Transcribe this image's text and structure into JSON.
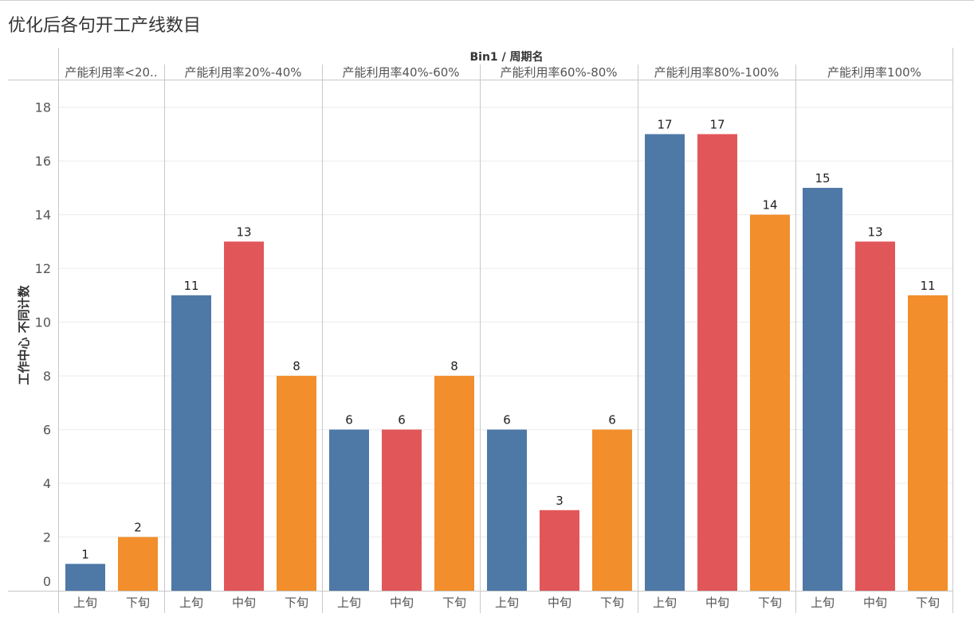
{
  "page_title": "优化后各句开工产线数目",
  "colors": {
    "上旬": "#4e79a7",
    "中旬": "#e15759",
    "下旬": "#f28e2b",
    "grid": "#ececec",
    "divider": "#c8c8c8",
    "text": "#555555"
  },
  "chart_data": {
    "type": "bar",
    "header_title": "Bin1 / 周期名",
    "ylabel": "工作中心 不同计数",
    "xlabel": "",
    "ylim": [
      0,
      19
    ],
    "yticks": [
      0,
      2,
      4,
      6,
      8,
      10,
      12,
      14,
      16,
      18
    ],
    "grid": true,
    "legend": "none",
    "panels": [
      {
        "label": "产能利用率<20..",
        "bars": [
          {
            "category": "上旬",
            "value": 1
          },
          {
            "category": "下旬",
            "value": 2
          }
        ]
      },
      {
        "label": "产能利用率20%-40%",
        "bars": [
          {
            "category": "上旬",
            "value": 11
          },
          {
            "category": "中旬",
            "value": 13
          },
          {
            "category": "下旬",
            "value": 8
          }
        ]
      },
      {
        "label": "产能利用率40%-60%",
        "bars": [
          {
            "category": "上旬",
            "value": 6
          },
          {
            "category": "中旬",
            "value": 6
          },
          {
            "category": "下旬",
            "value": 8
          }
        ]
      },
      {
        "label": "产能利用率60%-80%",
        "bars": [
          {
            "category": "上旬",
            "value": 6
          },
          {
            "category": "中旬",
            "value": 3
          },
          {
            "category": "下旬",
            "value": 6
          }
        ]
      },
      {
        "label": "产能利用率80%-100%",
        "bars": [
          {
            "category": "上旬",
            "value": 17
          },
          {
            "category": "中旬",
            "value": 17
          },
          {
            "category": "下旬",
            "value": 14
          }
        ]
      },
      {
        "label": "产能利用率100%",
        "bars": [
          {
            "category": "上旬",
            "value": 15
          },
          {
            "category": "中旬",
            "value": 13
          },
          {
            "category": "下旬",
            "value": 11
          }
        ]
      }
    ]
  }
}
